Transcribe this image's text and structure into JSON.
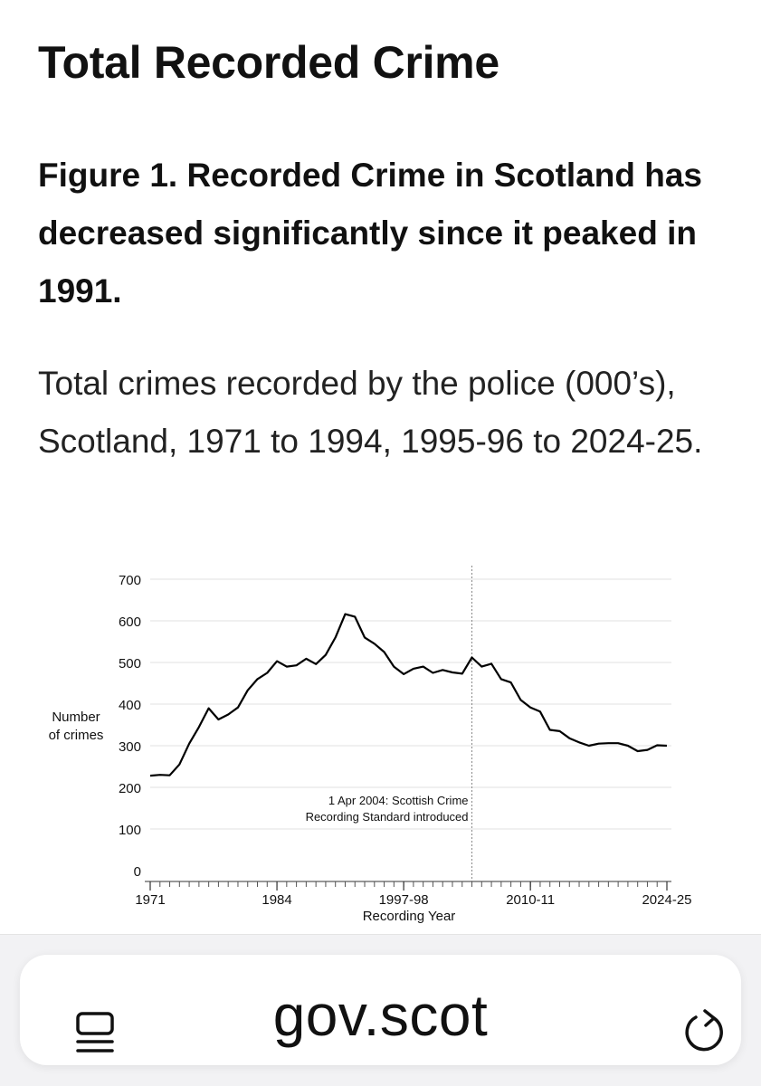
{
  "page": {
    "heading": "Total Recorded Crime",
    "figure_title": "Figure 1. Recorded Crime in Scotland has decreased significantly since it peaked in 1991.",
    "figure_subtitle": "Total crimes recorded by the police (000’s), Scotland, 1971 to 1994, 1995-96 to 2024-25."
  },
  "chart_data": {
    "type": "line",
    "title": "",
    "xlabel": "Recording Year",
    "ylabel_lines": [
      "Number",
      "of crimes"
    ],
    "ylim": [
      0,
      700
    ],
    "yticks": [
      0,
      100,
      200,
      300,
      400,
      500,
      600,
      700
    ],
    "grid": true,
    "x_tick_labels": [
      "1971",
      "1984",
      "1997-98",
      "2010-11",
      "2024-25"
    ],
    "annotation": {
      "at": "2004-05",
      "lines": [
        "1 Apr 2004: Scottish Crime",
        "Recording Standard introduced"
      ]
    },
    "series": [
      {
        "name": "",
        "color": "#000000",
        "x": [
          "1971",
          "1972",
          "1973",
          "1974",
          "1975",
          "1976",
          "1977",
          "1978",
          "1979",
          "1980",
          "1981",
          "1982",
          "1983",
          "1984",
          "1985",
          "1986",
          "1987",
          "1988",
          "1989",
          "1990",
          "1991",
          "1992",
          "1993",
          "1994",
          "1995-96",
          "1996-97",
          "1997-98",
          "1998-99",
          "1999-00",
          "2000-01",
          "2001-02",
          "2002-03",
          "2003-04",
          "2004-05",
          "2005-06",
          "2006-07",
          "2007-08",
          "2008-09",
          "2009-10",
          "2010-11",
          "2011-12",
          "2012-13",
          "2013-14",
          "2014-15",
          "2015-16",
          "2016-17",
          "2017-18",
          "2018-19",
          "2019-20",
          "2020-21",
          "2021-22",
          "2022-23",
          "2023-24",
          "2024-25"
        ],
        "values": [
          228,
          230,
          229,
          255,
          305,
          345,
          390,
          363,
          375,
          392,
          433,
          460,
          475,
          503,
          490,
          493,
          509,
          496,
          518,
          560,
          616,
          610,
          560,
          545,
          525,
          490,
          472,
          485,
          490,
          475,
          482,
          476,
          473,
          512,
          490,
          497,
          460,
          452,
          410,
          392,
          382,
          338,
          335,
          318,
          308,
          300,
          305,
          306,
          306,
          300,
          287,
          290,
          301,
          300
        ]
      }
    ]
  },
  "browser": {
    "url": "gov.scot",
    "reader_icon": "reader-view-icon",
    "reload_icon": "reload-icon"
  }
}
